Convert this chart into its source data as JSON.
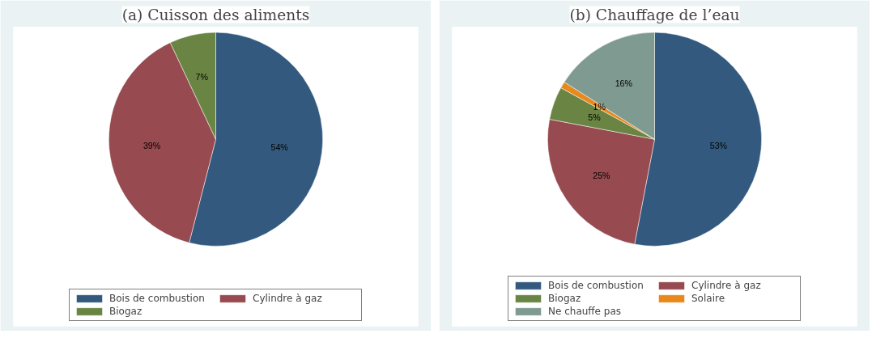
{
  "chart_data": [
    {
      "type": "pie",
      "title": "(a) Cuisson des aliments",
      "categories": [
        "Bois de combustion",
        "Cylindre à gaz",
        "Biogaz"
      ],
      "values": [
        54,
        39,
        7
      ],
      "value_labels": [
        "54%",
        "39%",
        "7%"
      ],
      "colors": [
        "#335a7e",
        "#974a4f",
        "#6a8543"
      ],
      "legend": "bottom"
    },
    {
      "type": "pie",
      "title": "(b) Chauffage de l’eau",
      "categories": [
        "Bois de combustion",
        "Cylindre à gaz",
        "Biogaz",
        "Solaire",
        "Ne chauffe pas"
      ],
      "values": [
        53,
        25,
        5,
        1,
        16
      ],
      "value_labels": [
        "53%",
        "25%",
        "5%",
        "1%",
        "16%"
      ],
      "colors": [
        "#335a7e",
        "#974a4f",
        "#6a8543",
        "#e8891d",
        "#7f9a90"
      ],
      "legend": "bottom"
    }
  ]
}
